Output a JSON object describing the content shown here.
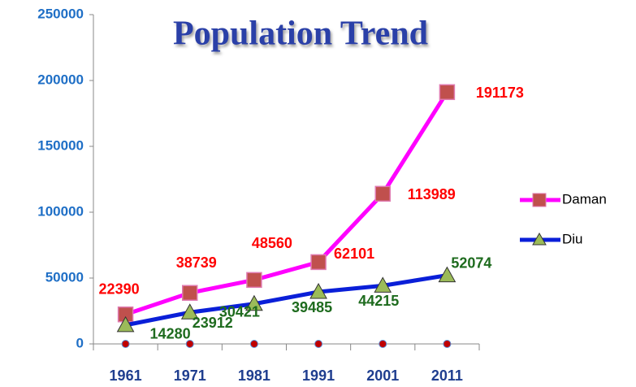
{
  "chart_data": {
    "type": "line",
    "title": "Population Trend",
    "categories": [
      "1961",
      "1971",
      "1981",
      "1991",
      "2001",
      "2011"
    ],
    "series": [
      {
        "name": "Daman",
        "color": "#ff00ff",
        "marker_color": "#c0504d",
        "label_color": "#ff0000",
        "values": [
          22390,
          38739,
          48560,
          62101,
          113989,
          191173
        ]
      },
      {
        "name": "Diu",
        "color": "#0a1fd8",
        "marker_color": "#9bbb59",
        "label_color": "#1e6b1e",
        "values": [
          14280,
          23912,
          30421,
          39485,
          44215,
          52074
        ]
      },
      {
        "color": "#c00000",
        "values": [
          0,
          0,
          0,
          0,
          0,
          0
        ]
      }
    ],
    "ylim": [
      0,
      250000
    ],
    "yticks": [
      0,
      50000,
      100000,
      150000,
      200000,
      250000
    ],
    "grid": false,
    "legend": "right"
  }
}
